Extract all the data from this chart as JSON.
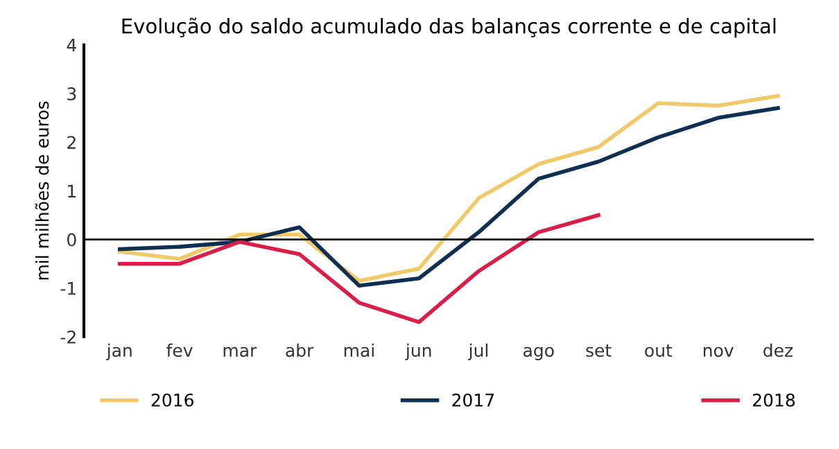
{
  "chart_data": {
    "type": "line",
    "title": "Evolução do saldo acumulado das balanças corrente e de capital",
    "ylabel": "mil milhões de euros",
    "categories": [
      "jan",
      "fev",
      "mar",
      "abr",
      "mai",
      "jun",
      "jul",
      "ago",
      "set",
      "out",
      "nov",
      "dez"
    ],
    "series": [
      {
        "name": "2016",
        "color": "#f0c96a",
        "values": [
          -0.25,
          -0.4,
          0.1,
          0.1,
          -0.85,
          -0.6,
          0.85,
          1.55,
          1.9,
          2.8,
          2.75,
          2.95
        ]
      },
      {
        "name": "2017",
        "color": "#0e2f4f",
        "values": [
          -0.2,
          -0.15,
          -0.05,
          0.25,
          -0.95,
          -0.8,
          0.15,
          1.25,
          1.6,
          2.1,
          2.5,
          2.7
        ]
      },
      {
        "name": "2018",
        "color": "#d6204a",
        "values": [
          -0.5,
          -0.5,
          -0.05,
          -0.3,
          -1.3,
          -1.7,
          -0.65,
          0.15,
          0.5,
          null,
          null,
          null
        ]
      }
    ],
    "ylim": [
      -2,
      4
    ],
    "yticks": [
      -2,
      -1,
      0,
      1,
      2,
      3,
      4
    ],
    "grid": false,
    "legend": "bottom",
    "marker": "none",
    "line_style": "solid",
    "ref_lines": [
      {
        "axis": "y",
        "value": 0,
        "color": "#000000"
      }
    ]
  }
}
